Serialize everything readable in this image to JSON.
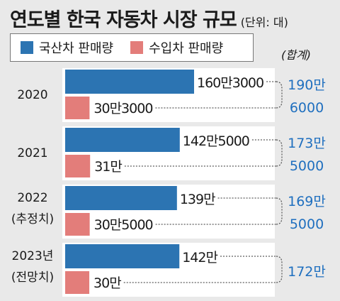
{
  "header": {
    "title": "연도별 한국 자동차 시장 규모",
    "unit": "(단위: 대)",
    "total_label": "(합계)"
  },
  "colors": {
    "domestic": "#2c74b2",
    "import": "#e37d7a",
    "total_text": "#1f6fbf",
    "background": "#e9e9e9"
  },
  "chart_data": {
    "type": "bar",
    "orientation": "horizontal",
    "title": "연도별 한국 자동차 시장 규모",
    "unit": "대",
    "categories": [
      "2020",
      "2021",
      "2022",
      "2023년"
    ],
    "category_sublabels": [
      "",
      "",
      "(추정치)",
      "(전망치)"
    ],
    "series": [
      {
        "name": "국산차 판매량",
        "values": [
          1603000,
          1425000,
          1390000,
          1420000
        ],
        "labels": [
          "160만3000",
          "142만5000",
          "139만",
          "142만"
        ]
      },
      {
        "name": "수입차 판매량",
        "values": [
          303000,
          310000,
          305000,
          300000
        ],
        "labels": [
          "30만3000",
          "31만",
          "30만5000",
          "30만"
        ]
      }
    ],
    "totals": [
      1906000,
      1735000,
      1695000,
      1720000
    ],
    "total_labels": [
      [
        "190만",
        "6000"
      ],
      [
        "173만",
        "5000"
      ],
      [
        "169만",
        "5000"
      ],
      [
        "172만"
      ]
    ],
    "legend": "top-left",
    "grid": false
  }
}
